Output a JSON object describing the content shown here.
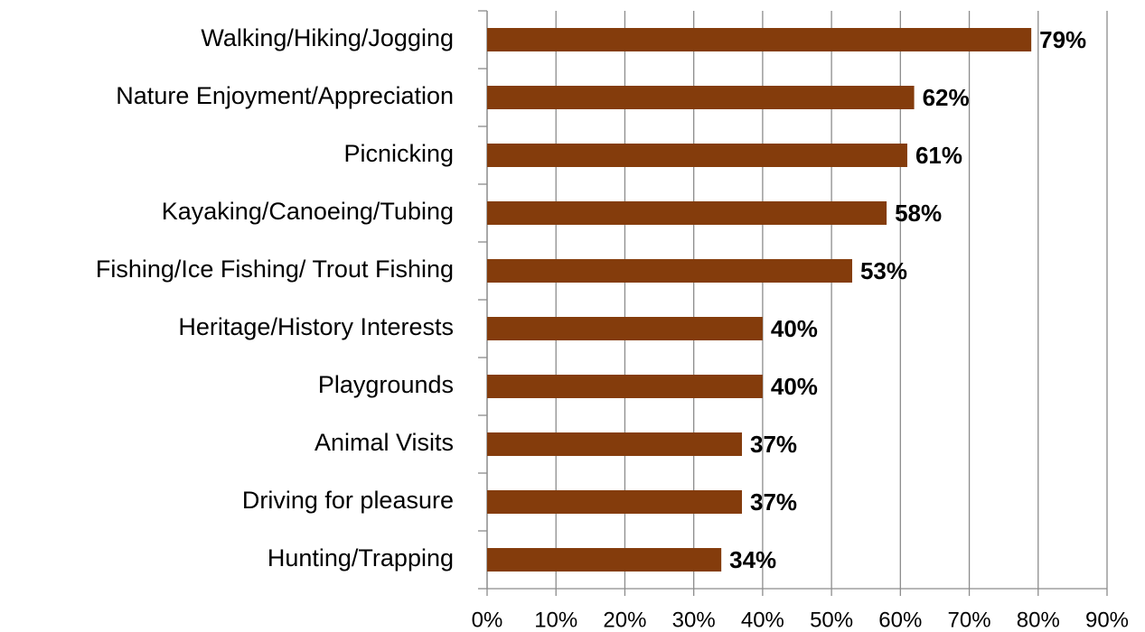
{
  "chart_data": {
    "type": "bar",
    "orientation": "horizontal",
    "categories": [
      "Walking/Hiking/Jogging",
      "Nature Enjoyment/Appreciation",
      "Picnicking",
      "Kayaking/Canoeing/Tubing",
      "Fishing/Ice Fishing/ Trout Fishing",
      "Heritage/History Interests",
      "Playgrounds",
      "Animal Visits",
      "Driving for pleasure",
      "Hunting/Trapping"
    ],
    "values": [
      79,
      62,
      61,
      58,
      53,
      40,
      40,
      37,
      37,
      34
    ],
    "value_labels": [
      "79%",
      "62%",
      "61%",
      "58%",
      "53%",
      "40%",
      "40%",
      "37%",
      "37%",
      "34%"
    ],
    "color": "#843c0c",
    "xlim": [
      0,
      90
    ],
    "xticks": [
      {
        "value": 0,
        "label": "0%"
      },
      {
        "value": 10,
        "label": "10%"
      },
      {
        "value": 20,
        "label": "20%"
      },
      {
        "value": 30,
        "label": "30%"
      },
      {
        "value": 40,
        "label": "40%"
      },
      {
        "value": 50,
        "label": "50%"
      },
      {
        "value": 60,
        "label": "60%"
      },
      {
        "value": 70,
        "label": "70%"
      },
      {
        "value": 80,
        "label": "80%"
      },
      {
        "value": 90,
        "label": "90%"
      }
    ],
    "grid": true
  }
}
